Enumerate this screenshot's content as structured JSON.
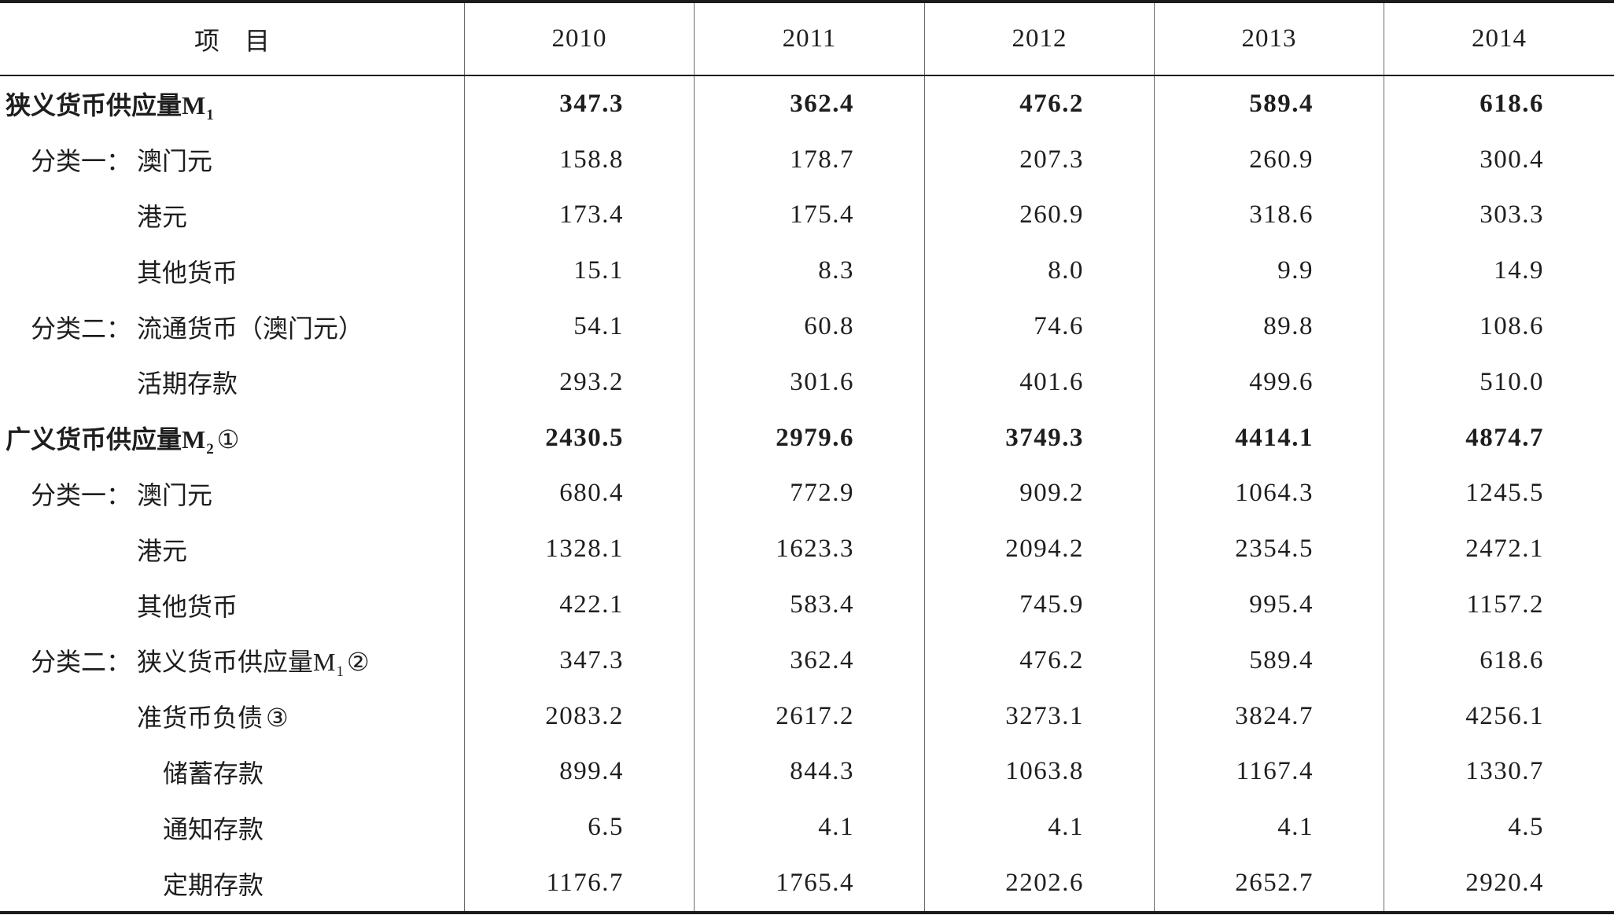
{
  "colors": {
    "text": "#1e1e1e",
    "rule": "#1c1c1c",
    "grid": "#6a6a6a",
    "background": "#ffffff"
  },
  "table": {
    "header": {
      "item_label": "项　目",
      "years": [
        "2010",
        "2011",
        "2012",
        "2013",
        "2014"
      ]
    },
    "rows": [
      {
        "prefix": "",
        "label": "狭义货币供应量M",
        "sub": "1",
        "note": "",
        "level": 0,
        "total": true,
        "values": [
          "347.3",
          "362.4",
          "476.2",
          "589.4",
          "618.6"
        ]
      },
      {
        "prefix": "分类一：",
        "label": "澳门元",
        "sub": "",
        "note": "",
        "level": 1,
        "total": false,
        "values": [
          "158.8",
          "178.7",
          "207.3",
          "260.9",
          "300.4"
        ]
      },
      {
        "prefix": "",
        "label": "港元",
        "sub": "",
        "note": "",
        "level": 1,
        "total": false,
        "values": [
          "173.4",
          "175.4",
          "260.9",
          "318.6",
          "303.3"
        ]
      },
      {
        "prefix": "",
        "label": "其他货币",
        "sub": "",
        "note": "",
        "level": 1,
        "total": false,
        "values": [
          "15.1",
          "8.3",
          "8.0",
          "9.9",
          "14.9"
        ]
      },
      {
        "prefix": "分类二：",
        "label": "流通货币（澳门元）",
        "sub": "",
        "note": "",
        "level": 1,
        "total": false,
        "values": [
          "54.1",
          "60.8",
          "74.6",
          "89.8",
          "108.6"
        ]
      },
      {
        "prefix": "",
        "label": "活期存款",
        "sub": "",
        "note": "",
        "level": 1,
        "total": false,
        "values": [
          "293.2",
          "301.6",
          "401.6",
          "499.6",
          "510.0"
        ]
      },
      {
        "prefix": "",
        "label": "广义货币供应量M",
        "sub": "2",
        "note": "①",
        "level": 0,
        "total": true,
        "values": [
          "2430.5",
          "2979.6",
          "3749.3",
          "4414.1",
          "4874.7"
        ]
      },
      {
        "prefix": "分类一：",
        "label": "澳门元",
        "sub": "",
        "note": "",
        "level": 1,
        "total": false,
        "values": [
          "680.4",
          "772.9",
          "909.2",
          "1064.3",
          "1245.5"
        ]
      },
      {
        "prefix": "",
        "label": "港元",
        "sub": "",
        "note": "",
        "level": 1,
        "total": false,
        "values": [
          "1328.1",
          "1623.3",
          "2094.2",
          "2354.5",
          "2472.1"
        ]
      },
      {
        "prefix": "",
        "label": "其他货币",
        "sub": "",
        "note": "",
        "level": 1,
        "total": false,
        "values": [
          "422.1",
          "583.4",
          "745.9",
          "995.4",
          "1157.2"
        ]
      },
      {
        "prefix": "分类二：",
        "label": "狭义货币供应量M",
        "sub": "1",
        "note": "②",
        "level": 1,
        "total": false,
        "values": [
          "347.3",
          "362.4",
          "476.2",
          "589.4",
          "618.6"
        ]
      },
      {
        "prefix": "",
        "label": "准货币负债",
        "sub": "",
        "note": "③",
        "level": 1,
        "total": false,
        "values": [
          "2083.2",
          "2617.2",
          "3273.1",
          "3824.7",
          "4256.1"
        ]
      },
      {
        "prefix": "",
        "label": "储蓄存款",
        "sub": "",
        "note": "",
        "level": 2,
        "total": false,
        "values": [
          "899.4",
          "844.3",
          "1063.8",
          "1167.4",
          "1330.7"
        ]
      },
      {
        "prefix": "",
        "label": "通知存款",
        "sub": "",
        "note": "",
        "level": 2,
        "total": false,
        "values": [
          "6.5",
          "4.1",
          "4.1",
          "4.1",
          "4.5"
        ]
      },
      {
        "prefix": "",
        "label": "定期存款",
        "sub": "",
        "note": "",
        "level": 2,
        "total": false,
        "values": [
          "1176.7",
          "1765.4",
          "2202.6",
          "2652.7",
          "2920.4"
        ]
      }
    ]
  }
}
